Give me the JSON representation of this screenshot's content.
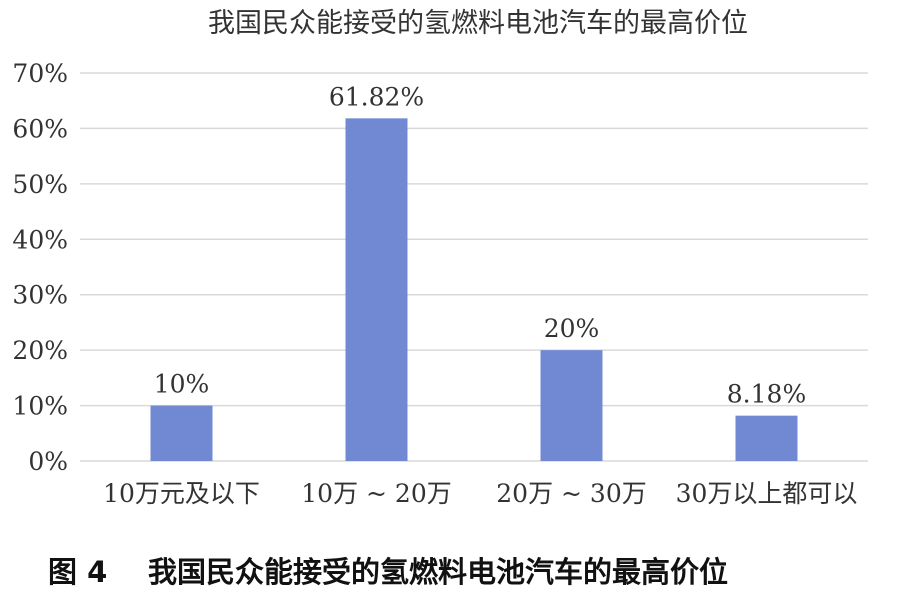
{
  "chart_data": {
    "type": "bar",
    "title": "我国民众能接受的氢燃料电池汽车的最高价位",
    "categories": [
      "10万元及以下",
      "10万 ~ 20万",
      "20万 ~ 30万",
      "30万以上都可以"
    ],
    "values": [
      10,
      61.82,
      20,
      8.18
    ],
    "data_labels": [
      "10%",
      "61.82%",
      "20%",
      "8.18%"
    ],
    "xlabel": "",
    "ylabel": "",
    "ylim": [
      0,
      70
    ],
    "yticks": [
      0,
      10,
      20,
      30,
      40,
      50,
      60,
      70
    ],
    "ytick_labels": [
      "0%",
      "10%",
      "20%",
      "30%",
      "40%",
      "50%",
      "60%",
      "70%"
    ],
    "grid": true,
    "legend": "none",
    "bar_color": "#7089d2"
  },
  "caption": {
    "figure_label": "图 4",
    "text": "我国民众能接受的氢燃料电池汽车的最高价位"
  }
}
